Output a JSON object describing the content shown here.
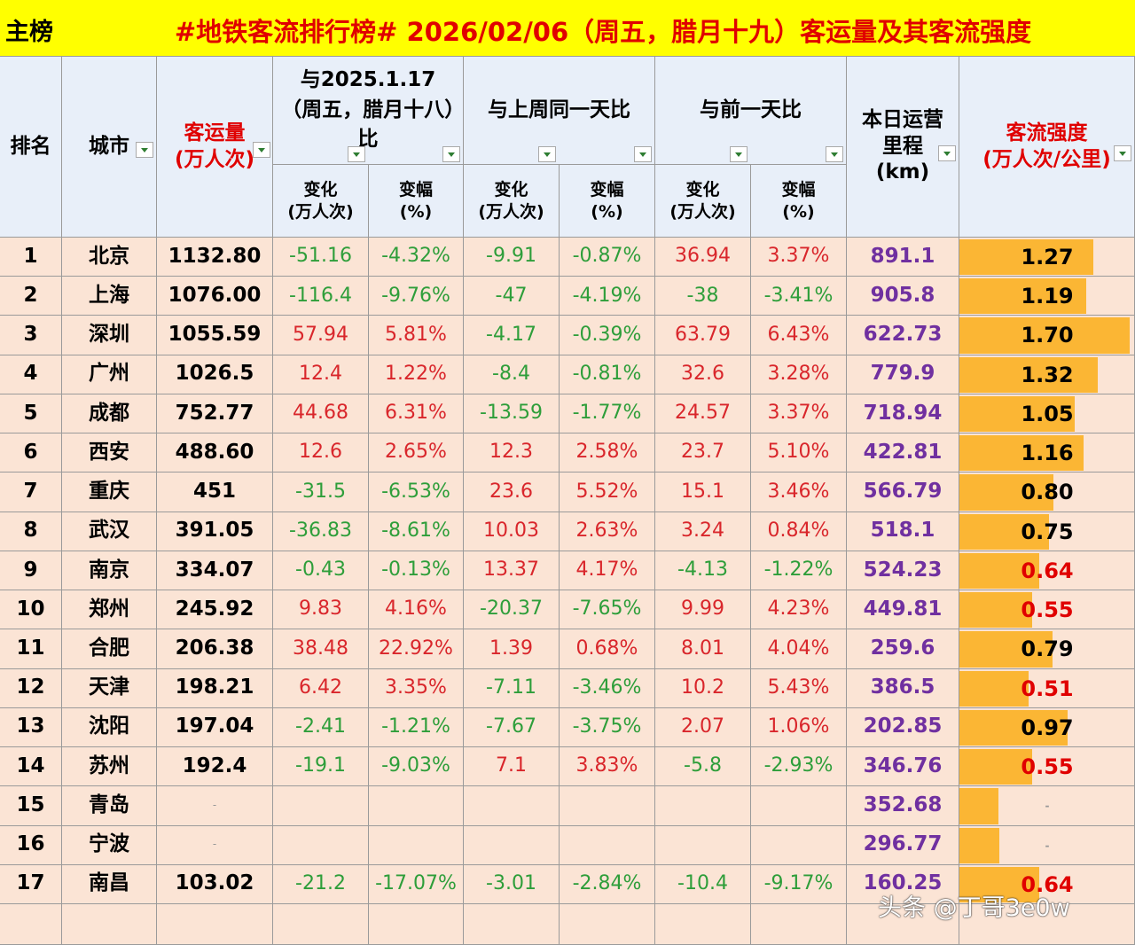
{
  "title_tag": "主榜",
  "title": "#地铁客流排行榜# 2026/02/06（周五，腊月十九）客运量及其客流强度",
  "headers": {
    "rank": "排名",
    "city": "城市",
    "volume": [
      "客运量",
      "(万人次)"
    ],
    "groups": [
      "与2025.1.17（周五，腊月十八）比",
      "与上周同一天比",
      "与前一天比"
    ],
    "sub": [
      [
        "变化",
        "(万人次)"
      ],
      [
        "变幅",
        "(%)"
      ]
    ],
    "km": [
      "本日运营",
      "里程",
      "(km)"
    ],
    "intensity": [
      "客流强度",
      "(万人次/公里)"
    ]
  },
  "colors": {
    "title_bg": "#ffff00",
    "title": "#e00000",
    "header_bg": "#e8eff9",
    "row_bg": "#fbe4d5",
    "up": "#d9262b",
    "down": "#2e9e3a",
    "km": "#7030a0",
    "bar": "#fbb634",
    "header_red": "#e00000"
  },
  "bar_lim": [
    -0.3,
    1.76
  ],
  "rows": [
    {
      "rank": 1,
      "cells": [
        "北京",
        "1132.80",
        "-51.16",
        "-4.32%",
        "-9.91",
        "-0.87%",
        "36.94",
        "3.37%",
        "891.1"
      ],
      "intensity": 1.27,
      "intensity_color": "#000000"
    },
    {
      "rank": 2,
      "cells": [
        "上海",
        "1076.00",
        "-116.4",
        "-9.76%",
        "-47",
        "-4.19%",
        "-38",
        "-3.41%",
        "905.8"
      ],
      "intensity": 1.19,
      "intensity_color": "#000000"
    },
    {
      "rank": 3,
      "cells": [
        "深圳",
        "1055.59",
        "57.94",
        "5.81%",
        "-4.17",
        "-0.39%",
        "63.79",
        "6.43%",
        "622.73"
      ],
      "intensity": {
        "value": 1.7,
        "label": "1.70"
      },
      "intensity_color": "#000000"
    },
    {
      "rank": 4,
      "cells": [
        "广州",
        "1026.5",
        "12.4",
        "1.22%",
        "-8.4",
        "-0.81%",
        "32.6",
        "3.28%",
        "779.9"
      ],
      "intensity": 1.32,
      "intensity_color": "#000000"
    },
    {
      "rank": 5,
      "cells": [
        "成都",
        "752.77",
        "44.68",
        "6.31%",
        "-13.59",
        "-1.77%",
        "24.57",
        "3.37%",
        "718.94"
      ],
      "intensity": 1.05,
      "intensity_color": "#000000"
    },
    {
      "rank": 6,
      "cells": [
        "西安",
        "488.60",
        "12.6",
        "2.65%",
        "12.3",
        "2.58%",
        "23.7",
        "5.10%",
        "422.81"
      ],
      "intensity": 1.16,
      "intensity_color": "#000000"
    },
    {
      "rank": 7,
      "cells": [
        "重庆",
        "451",
        "-31.5",
        "-6.53%",
        "23.6",
        "5.52%",
        "15.1",
        "3.46%",
        "566.79"
      ],
      "intensity": {
        "value": 0.8,
        "label": "0.80"
      },
      "intensity_color": "#000000"
    },
    {
      "rank": 8,
      "cells": [
        "武汉",
        "391.05",
        "-36.83",
        "-8.61%",
        "10.03",
        "2.63%",
        "3.24",
        "0.84%",
        "518.1"
      ],
      "intensity": 0.75,
      "intensity_color": "#000000"
    },
    {
      "rank": 9,
      "cells": [
        "南京",
        "334.07",
        "-0.43",
        "-0.13%",
        "13.37",
        "4.17%",
        "-4.13",
        "-1.22%",
        "524.23"
      ],
      "intensity": 0.64,
      "intensity_color": "#e00000"
    },
    {
      "rank": 10,
      "cells": [
        "郑州",
        "245.92",
        "9.83",
        "4.16%",
        "-20.37",
        "-7.65%",
        "9.99",
        "4.23%",
        "449.81"
      ],
      "intensity": 0.55,
      "intensity_color": "#e00000"
    },
    {
      "rank": 11,
      "cells": [
        "合肥",
        "206.38",
        "38.48",
        "22.92%",
        "1.39",
        "0.68%",
        "8.01",
        "4.04%",
        "259.6"
      ],
      "intensity": 0.79,
      "intensity_color": "#000000"
    },
    {
      "rank": 12,
      "cells": [
        "天津",
        "198.21",
        "6.42",
        "3.35%",
        "-7.11",
        "-3.46%",
        "10.2",
        "5.43%",
        "386.5"
      ],
      "intensity": 0.51,
      "intensity_color": "#e00000"
    },
    {
      "rank": 13,
      "cells": [
        "沈阳",
        "197.04",
        "-2.41",
        "-1.21%",
        "-7.67",
        "-3.75%",
        "2.07",
        "1.06%",
        "202.85"
      ],
      "intensity": 0.97,
      "intensity_color": "#000000"
    },
    {
      "rank": 14,
      "cells": [
        "苏州",
        "192.4",
        "-19.1",
        "-9.03%",
        "7.1",
        "3.83%",
        "-5.8",
        "-2.93%",
        "346.76"
      ],
      "intensity": 0.55,
      "intensity_color": "#e00000"
    },
    {
      "rank": 15,
      "cells": [
        "青岛",
        "-",
        null,
        null,
        null,
        null,
        null,
        null,
        "352.68"
      ],
      "intensity": {
        "value": 0.16,
        "label": "-"
      },
      "intensity_color": "#999999"
    },
    {
      "rank": 16,
      "cells": [
        "宁波",
        "-",
        null,
        null,
        null,
        null,
        null,
        null,
        "296.77"
      ],
      "intensity": {
        "value": 0.17,
        "label": "-"
      },
      "intensity_color": "#999999"
    },
    {
      "rank": 17,
      "cells": [
        "南昌",
        "103.02",
        "-21.2",
        "-17.07%",
        "-3.01",
        "-2.84%",
        "-10.4",
        "-9.17%",
        "160.25"
      ],
      "intensity": 0.64,
      "intensity_color": "#e00000"
    }
  ],
  "watermark": "头条 @丁哥3e0w"
}
